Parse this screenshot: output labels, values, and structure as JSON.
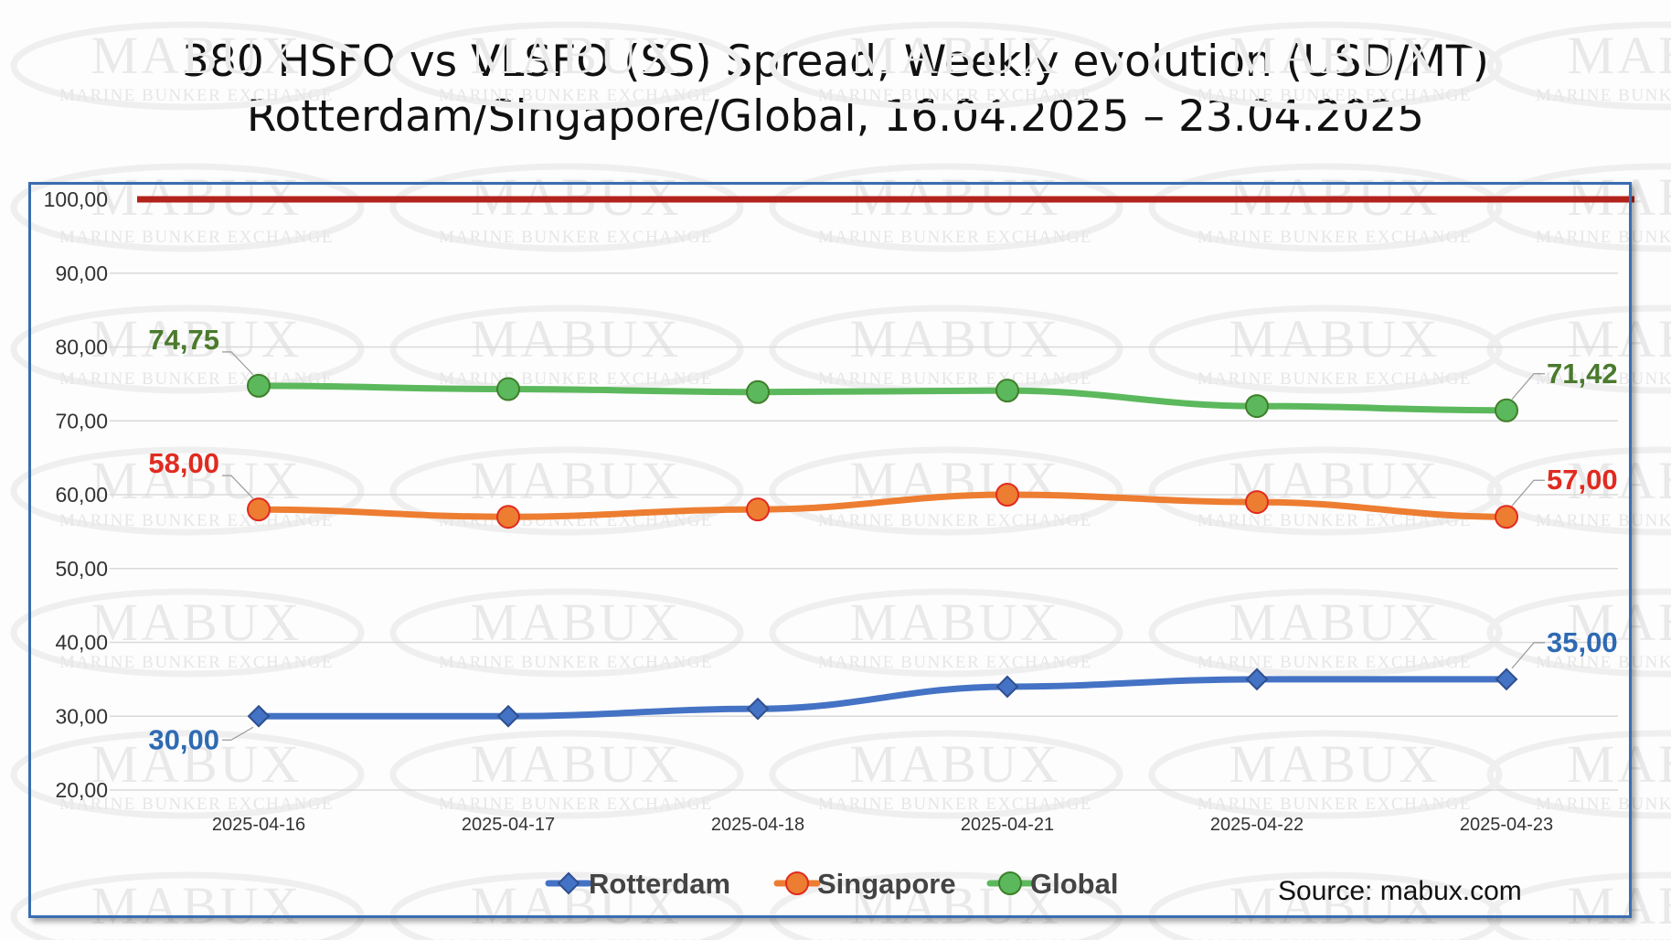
{
  "title_line1": "380 HSFO vs VLSFO (SS) Spread, Weekly evolution (USD/MT)",
  "title_line2": "Rotterdam/Singapore/Global, 16.04.2025 – 23.04.2025",
  "source": "Source: mabux.com",
  "watermark": {
    "big": "MABUX",
    "small": "MARINE BUNKER EXCHANGE"
  },
  "chart_data": {
    "type": "line",
    "categories": [
      "2025-04-16",
      "2025-04-17",
      "2025-04-18",
      "2025-04-21",
      "2025-04-22",
      "2025-04-23"
    ],
    "y_tick_labels": [
      "20,00",
      "30,00",
      "40,00",
      "50,00",
      "60,00",
      "70,00",
      "80,00",
      "90,00",
      "100,00"
    ],
    "ylim": [
      20,
      100
    ],
    "grid": true,
    "legend_position": "bottom",
    "reference_line": {
      "value": 100,
      "color": "#b2231c"
    },
    "series": [
      {
        "name": "Rotterdam",
        "color": "#4472c4",
        "marker": "diamond",
        "values": [
          30,
          30,
          31,
          34,
          35,
          35
        ],
        "first_label": "30,00",
        "last_label": "35,00",
        "label_color": "#2e6ab3"
      },
      {
        "name": "Singapore",
        "color": "#ed7d31",
        "marker": "circle",
        "values": [
          58,
          57,
          58,
          60,
          59,
          57
        ],
        "first_label": "58,00",
        "last_label": "57,00",
        "label_color": "#e02b20"
      },
      {
        "name": "Global",
        "color": "#5cb85c",
        "marker": "circle",
        "values": [
          74.75,
          74.3,
          73.9,
          74.1,
          72.0,
          71.42
        ],
        "first_label": "74,75",
        "last_label": "71,42",
        "label_color": "#4a7a2c"
      }
    ]
  }
}
